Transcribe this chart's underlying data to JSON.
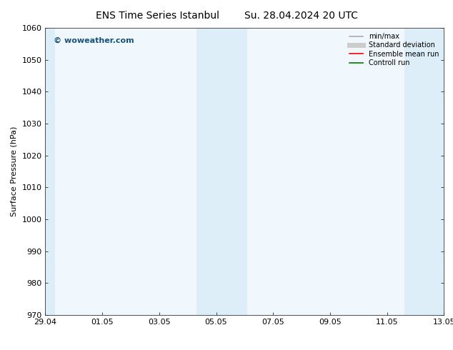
{
  "title_left": "ENS Time Series Istanbul",
  "title_right": "Su. 28.04.2024 20 UTC",
  "ylabel": "Surface Pressure (hPa)",
  "ylim": [
    970,
    1060
  ],
  "yticks": [
    970,
    980,
    990,
    1000,
    1010,
    1020,
    1030,
    1040,
    1050,
    1060
  ],
  "xtick_labels": [
    "29.04",
    "01.05",
    "03.05",
    "05.05",
    "07.05",
    "09.05",
    "11.05",
    "13.05"
  ],
  "xtick_positions": [
    0,
    2,
    4,
    6,
    8,
    10,
    12,
    14
  ],
  "xlim": [
    0,
    14
  ],
  "shaded_bands": [
    {
      "x_start": -0.1,
      "x_end": 0.35
    },
    {
      "x_start": 5.3,
      "x_end": 7.1
    },
    {
      "x_start": 12.6,
      "x_end": 14.1
    }
  ],
  "shaded_color": "#ddeef8",
  "plot_bg_color": "#f0f7fd",
  "bg_color": "#ffffff",
  "watermark_text": "© woweather.com",
  "watermark_color": "#1a5276",
  "legend_items": [
    {
      "label": "min/max",
      "color": "#aaaaaa",
      "lw": 1.2,
      "style": "solid"
    },
    {
      "label": "Standard deviation",
      "color": "#cccccc",
      "lw": 5,
      "style": "solid"
    },
    {
      "label": "Ensemble mean run",
      "color": "#ff0000",
      "lw": 1.2,
      "style": "solid"
    },
    {
      "label": "Controll run",
      "color": "#007700",
      "lw": 1.2,
      "style": "solid"
    }
  ],
  "title_fontsize": 10,
  "ylabel_fontsize": 8,
  "tick_fontsize": 8,
  "watermark_fontsize": 8,
  "legend_fontsize": 7
}
